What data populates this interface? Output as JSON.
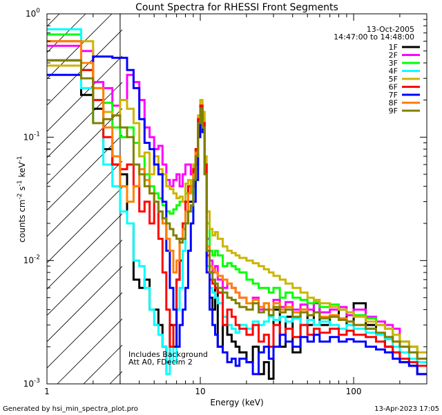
{
  "chart_data": {
    "type": "line",
    "title": "Count Spectra for RHESSI Front Segments",
    "xlabel": "Energy (keV)",
    "ylabel_parts": {
      "base": "counts cm",
      "exp1": "-2",
      "mid": " s",
      "exp2": "-1",
      "end": " keV",
      "exp3": "-1"
    },
    "xscale": "log",
    "yscale": "log",
    "xlim": [
      1,
      300
    ],
    "ylim": [
      0.001,
      1.0
    ],
    "x_tick_labels": [
      "1",
      "10",
      "100"
    ],
    "y_tick_labels": [
      "10",
      "10",
      "10",
      "10"
    ],
    "y_tick_exponents": [
      "0",
      "-1",
      "-2",
      "-3"
    ],
    "attenuator_threshold_kev": 3.0,
    "legend_position": "top-right",
    "date": "13-Oct-2005",
    "time_range": "14:47:00 to 14:48:00",
    "annotations": [
      "Includes Background",
      "Att A0, FDecim 2"
    ],
    "footer_left": "Generated by hsi_min_spectra_plot.pro",
    "footer_right": "13-Apr-2023 17:05",
    "energy_edges": [
      1.0,
      1.33,
      1.67,
      2.0,
      2.33,
      2.67,
      3.0,
      3.33,
      3.67,
      4.0,
      4.33,
      4.67,
      5.0,
      5.33,
      5.67,
      6.0,
      6.33,
      6.67,
      7.0,
      7.33,
      7.67,
      8.0,
      8.33,
      8.67,
      9.0,
      9.33,
      9.67,
      10.0,
      10.33,
      10.67,
      11.0,
      11.5,
      12.0,
      12.5,
      13.0,
      14.0,
      15.0,
      16.0,
      17.0,
      18.0,
      20.0,
      22.0,
      24.0,
      26.0,
      28.0,
      30.0,
      33.0,
      36.0,
      40.0,
      45.0,
      50.0,
      55.0,
      60.0,
      70.0,
      80.0,
      90.0,
      100.0,
      120.0,
      140.0,
      160.0,
      180.0,
      200.0,
      230.0,
      260.0,
      300.0
    ],
    "series": [
      {
        "name": "1F",
        "color": "#000000",
        "values": [
          0.42,
          0.42,
          0.22,
          0.17,
          0.08,
          0.06,
          0.05,
          0.02,
          0.007,
          0.006,
          0.007,
          0.004,
          0.004,
          0.003,
          0.002,
          0.0015,
          0.003,
          0.002,
          0.007,
          0.01,
          0.012,
          0.02,
          0.03,
          0.03,
          0.04,
          0.06,
          0.12,
          0.16,
          0.12,
          0.05,
          0.009,
          0.005,
          0.004,
          0.006,
          0.002,
          0.003,
          0.0025,
          0.0022,
          0.002,
          0.0018,
          0.0015,
          0.002,
          0.0012,
          0.0015,
          0.0011,
          0.004,
          0.002,
          0.0035,
          0.0018,
          0.004,
          0.003,
          0.0045,
          0.003,
          0.0035,
          0.004,
          0.003,
          0.0045,
          0.003,
          0.0025,
          0.002,
          0.0018,
          0.0015,
          0.0014,
          0.0012
        ]
      },
      {
        "name": "2F",
        "color": "#ff00ff",
        "values": [
          0.55,
          0.55,
          0.5,
          0.28,
          0.25,
          0.18,
          0.2,
          0.32,
          0.28,
          0.2,
          0.12,
          0.1,
          0.08,
          0.085,
          0.06,
          0.045,
          0.04,
          0.045,
          0.05,
          0.04,
          0.05,
          0.06,
          0.06,
          0.05,
          0.06,
          0.075,
          0.14,
          0.17,
          0.13,
          0.06,
          0.015,
          0.01,
          0.008,
          0.009,
          0.007,
          0.006,
          0.0065,
          0.006,
          0.0055,
          0.005,
          0.0045,
          0.005,
          0.004,
          0.0045,
          0.004,
          0.0048,
          0.0042,
          0.0046,
          0.004,
          0.0044,
          0.004,
          0.0045,
          0.0038,
          0.004,
          0.0042,
          0.0036,
          0.004,
          0.0035,
          0.0032,
          0.003,
          0.0028,
          0.0022,
          0.002,
          0.0018
        ]
      },
      {
        "name": "3F",
        "color": "#00ff00",
        "values": [
          0.68,
          0.68,
          0.35,
          0.2,
          0.19,
          0.12,
          0.1,
          0.12,
          0.09,
          0.07,
          0.05,
          0.04,
          0.035,
          0.032,
          0.028,
          0.025,
          0.024,
          0.026,
          0.028,
          0.03,
          0.03,
          0.035,
          0.04,
          0.036,
          0.045,
          0.07,
          0.13,
          0.18,
          0.14,
          0.06,
          0.02,
          0.012,
          0.011,
          0.012,
          0.011,
          0.009,
          0.0095,
          0.009,
          0.0085,
          0.008,
          0.007,
          0.0065,
          0.006,
          0.006,
          0.0055,
          0.006,
          0.005,
          0.0055,
          0.005,
          0.0048,
          0.0045,
          0.0046,
          0.0042,
          0.0044,
          0.004,
          0.0038,
          0.0036,
          0.0034,
          0.003,
          0.0028,
          0.0025,
          0.0022,
          0.002,
          0.0018
        ]
      },
      {
        "name": "4F",
        "color": "#00ffff",
        "values": [
          0.75,
          0.75,
          0.25,
          0.13,
          0.06,
          0.04,
          0.025,
          0.02,
          0.01,
          0.009,
          0.006,
          0.004,
          0.003,
          0.0025,
          0.002,
          0.0012,
          0.002,
          0.0015,
          0.004,
          0.006,
          0.012,
          0.02,
          0.025,
          0.025,
          0.035,
          0.055,
          0.11,
          0.16,
          0.12,
          0.05,
          0.009,
          0.006,
          0.0055,
          0.005,
          0.0045,
          0.0035,
          0.003,
          0.0028,
          0.0026,
          0.003,
          0.0028,
          0.0032,
          0.003,
          0.0032,
          0.0035,
          0.0033,
          0.0035,
          0.0032,
          0.0034,
          0.003,
          0.0033,
          0.003,
          0.0032,
          0.003,
          0.0028,
          0.003,
          0.0028,
          0.0026,
          0.0025,
          0.0023,
          0.002,
          0.0018,
          0.0016,
          0.0015
        ]
      },
      {
        "name": "5F",
        "color": "#ccb400",
        "values": [
          0.38,
          0.38,
          0.6,
          0.25,
          0.16,
          0.15,
          0.2,
          0.17,
          0.13,
          0.07,
          0.075,
          0.05,
          0.07,
          0.055,
          0.05,
          0.04,
          0.038,
          0.035,
          0.032,
          0.033,
          0.03,
          0.042,
          0.045,
          0.04,
          0.06,
          0.08,
          0.15,
          0.2,
          0.16,
          0.07,
          0.025,
          0.018,
          0.016,
          0.017,
          0.015,
          0.013,
          0.012,
          0.0115,
          0.011,
          0.0105,
          0.01,
          0.0095,
          0.009,
          0.0085,
          0.008,
          0.0075,
          0.007,
          0.0065,
          0.006,
          0.0055,
          0.005,
          0.0048,
          0.0045,
          0.0042,
          0.004,
          0.0038,
          0.0035,
          0.0032,
          0.003,
          0.0028,
          0.0025,
          0.0022,
          0.002,
          0.0018
        ]
      },
      {
        "name": "6F",
        "color": "#ff0000",
        "values": [
          0.6,
          0.6,
          0.35,
          0.2,
          0.1,
          0.06,
          0.055,
          0.06,
          0.04,
          0.025,
          0.03,
          0.02,
          0.03,
          0.015,
          0.008,
          0.004,
          0.002,
          0.003,
          0.007,
          0.015,
          0.02,
          0.03,
          0.04,
          0.04,
          0.055,
          0.08,
          0.14,
          0.18,
          0.13,
          0.06,
          0.011,
          0.007,
          0.0065,
          0.006,
          0.0055,
          0.003,
          0.004,
          0.0035,
          0.003,
          0.0028,
          0.0025,
          0.003,
          0.0022,
          0.0025,
          0.002,
          0.003,
          0.0025,
          0.0028,
          0.0024,
          0.003,
          0.0025,
          0.0028,
          0.0026,
          0.0028,
          0.0025,
          0.0027,
          0.0025,
          0.0024,
          0.0022,
          0.002,
          0.0018,
          0.0016,
          0.0015,
          0.0014
        ]
      },
      {
        "name": "7F",
        "color": "#0000ff",
        "values": [
          0.32,
          0.32,
          0.4,
          0.45,
          0.45,
          0.44,
          0.44,
          0.35,
          0.25,
          0.14,
          0.09,
          0.08,
          0.06,
          0.05,
          0.03,
          0.012,
          0.006,
          0.004,
          0.002,
          0.003,
          0.004,
          0.006,
          0.012,
          0.02,
          0.03,
          0.045,
          0.1,
          0.15,
          0.11,
          0.05,
          0.008,
          0.004,
          0.003,
          0.0025,
          0.002,
          0.0018,
          0.0015,
          0.0016,
          0.0014,
          0.0016,
          0.0015,
          0.0012,
          0.0018,
          0.002,
          0.0016,
          0.002,
          0.0025,
          0.0022,
          0.002,
          0.0024,
          0.0022,
          0.0025,
          0.0022,
          0.0024,
          0.0022,
          0.0023,
          0.0022,
          0.002,
          0.0019,
          0.0018,
          0.0016,
          0.0015,
          0.0014,
          0.0012
        ]
      },
      {
        "name": "8F",
        "color": "#ff8000",
        "values": [
          0.6,
          0.6,
          0.4,
          0.25,
          0.12,
          0.07,
          0.04,
          0.03,
          0.04,
          0.055,
          0.045,
          0.035,
          0.03,
          0.025,
          0.02,
          0.015,
          0.012,
          0.008,
          0.01,
          0.014,
          0.018,
          0.025,
          0.035,
          0.04,
          0.05,
          0.075,
          0.13,
          0.17,
          0.12,
          0.05,
          0.013,
          0.009,
          0.0085,
          0.008,
          0.0075,
          0.007,
          0.0065,
          0.006,
          0.0055,
          0.005,
          0.0045,
          0.0048,
          0.0042,
          0.0045,
          0.004,
          0.0045,
          0.004,
          0.0042,
          0.0038,
          0.004,
          0.0036,
          0.0038,
          0.0035,
          0.0036,
          0.0034,
          0.0032,
          0.003,
          0.0028,
          0.0026,
          0.0024,
          0.0022,
          0.002,
          0.0018,
          0.0016
        ]
      },
      {
        "name": "9F",
        "color": "#808000",
        "values": [
          0.42,
          0.42,
          0.3,
          0.13,
          0.14,
          0.15,
          0.12,
          0.1,
          0.06,
          0.05,
          0.04,
          0.035,
          0.03,
          0.025,
          0.022,
          0.02,
          0.018,
          0.016,
          0.015,
          0.014,
          0.015,
          0.02,
          0.025,
          0.028,
          0.045,
          0.07,
          0.13,
          0.17,
          0.12,
          0.05,
          0.012,
          0.008,
          0.007,
          0.0065,
          0.006,
          0.0055,
          0.005,
          0.0048,
          0.0045,
          0.0042,
          0.004,
          0.0045,
          0.0038,
          0.004,
          0.0036,
          0.0042,
          0.0038,
          0.004,
          0.0035,
          0.0038,
          0.0036,
          0.0038,
          0.0034,
          0.0035,
          0.0033,
          0.0032,
          0.003,
          0.0028,
          0.0026,
          0.0024,
          0.0022,
          0.002,
          0.0018,
          0.0016
        ]
      }
    ]
  }
}
